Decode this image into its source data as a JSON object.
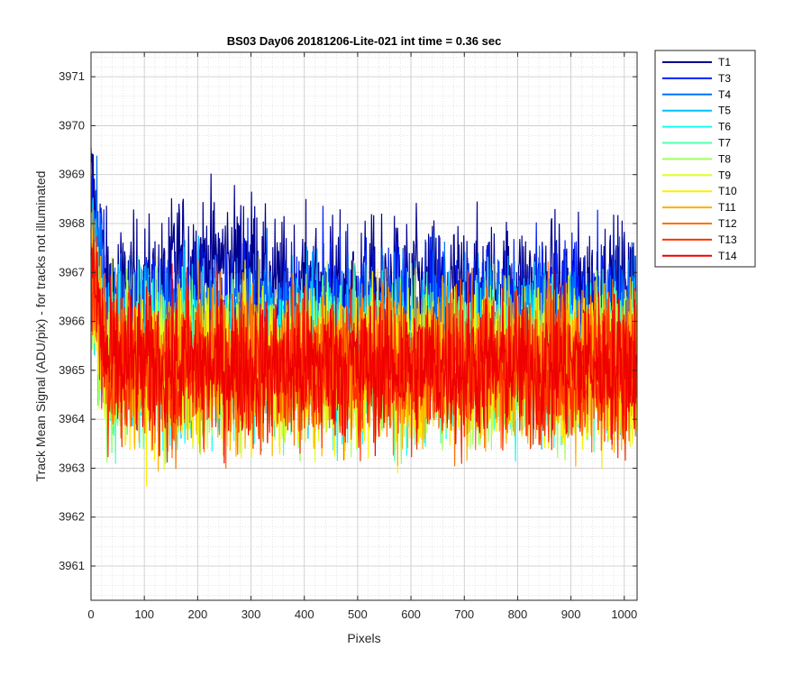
{
  "chart_data": {
    "type": "line",
    "title": "BS03 Day06 20181206-Lite-021 int time = 0.36 sec",
    "xlabel": "Pixels",
    "ylabel": "Track Mean Signal (ADU/pix) - for tracks not illuminated",
    "xlim": [
      0,
      1024
    ],
    "ylim": [
      3960.3,
      3971.5
    ],
    "xticks": [
      0,
      100,
      200,
      300,
      400,
      500,
      600,
      700,
      800,
      900,
      1000
    ],
    "yticks": [
      3961,
      3962,
      3963,
      3964,
      3965,
      3966,
      3967,
      3968,
      3969,
      3970,
      3971
    ],
    "grid": true,
    "minor_grid": true,
    "legend_position": "outside-top-right",
    "n_points": 1024,
    "series": [
      {
        "name": "T1",
        "color": "#00008F",
        "mean": 3966.6,
        "noise": 0.75
      },
      {
        "name": "T3",
        "color": "#0020FF",
        "mean": 3966.2,
        "noise": 0.75
      },
      {
        "name": "T4",
        "color": "#0070FF",
        "mean": 3965.9,
        "noise": 0.75
      },
      {
        "name": "T5",
        "color": "#00BFFF",
        "mean": 3965.4,
        "noise": 0.8
      },
      {
        "name": "T6",
        "color": "#10FFEF",
        "mean": 3965.2,
        "noise": 0.8
      },
      {
        "name": "T7",
        "color": "#50FFAF",
        "mean": 3965.2,
        "noise": 0.8
      },
      {
        "name": "T8",
        "color": "#9FFF60",
        "mean": 3965.1,
        "noise": 0.8
      },
      {
        "name": "T9",
        "color": "#DFFF20",
        "mean": 3965.1,
        "noise": 0.8
      },
      {
        "name": "T10",
        "color": "#FFEF00",
        "mean": 3965.0,
        "noise": 0.8
      },
      {
        "name": "T11",
        "color": "#FFB000",
        "mean": 3965.1,
        "noise": 0.8
      },
      {
        "name": "T12",
        "color": "#FF7000",
        "mean": 3965.1,
        "noise": 0.8
      },
      {
        "name": "T13",
        "color": "#FF3000",
        "mean": 3965.1,
        "noise": 0.8
      },
      {
        "name": "T14",
        "color": "#EF0000",
        "mean": 3965.1,
        "noise": 0.75
      }
    ]
  }
}
